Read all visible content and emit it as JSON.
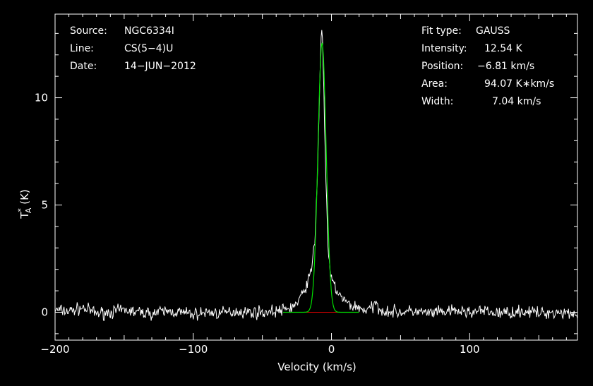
{
  "header_left": {
    "source_label": "Source:",
    "source_value": "NGC6334I",
    "line_label": "Line:",
    "line_value": "CS(5−4)U",
    "date_label": "Date:",
    "date_value": "14−JUN−2012"
  },
  "header_right": {
    "fit_type_label": "Fit type:",
    "fit_type_value": "GAUSS",
    "intensity_label": "Intensity:",
    "intensity_value": "12.54 K",
    "position_label": "Position:",
    "position_value": "−6.81 km/s",
    "area_label": "Area:",
    "area_value": "94.07 K∗km/s",
    "width_label": "Width:",
    "width_value": "7.04 km/s"
  },
  "colors": {
    "background": "#000000",
    "axes": "#ffffff",
    "spectrum": "#ffffff",
    "fit": "#00e000",
    "baseline": "#e00000"
  },
  "chart_data": {
    "type": "line",
    "xlabel": "Velocity (km/s)",
    "ylabel_main": "T",
    "ylabel_sub": "A",
    "ylabel_sup": "*",
    "ylabel_unit": " (K)",
    "xlim": [
      -200,
      178
    ],
    "ylim": [
      -1.3,
      13.9
    ],
    "xticks": [
      -200,
      -100,
      0,
      100
    ],
    "xtick_labels": [
      "−200",
      "−100",
      "0",
      "100"
    ],
    "yticks": [
      0,
      5,
      10
    ],
    "ytick_labels": [
      "0",
      "5",
      "10"
    ],
    "fit": {
      "name": "GAUSS",
      "amplitude": 12.54,
      "center": -6.81,
      "fwhm": 7.04
    },
    "spectrum": {
      "x": [
        -200,
        -190,
        -180,
        -170,
        -160,
        -150,
        -140,
        -130,
        -120,
        -110,
        -100,
        -90,
        -80,
        -70,
        -60,
        -50,
        -40,
        -35,
        -30,
        -25,
        -22,
        -20,
        -18,
        -16,
        -14,
        -12,
        -11,
        -10,
        -9,
        -8,
        -7.5,
        -7,
        -6.5,
        -6,
        -5,
        -4,
        -3,
        -2,
        -1,
        0,
        2,
        4,
        6,
        8,
        10,
        12,
        15,
        18,
        20,
        25,
        30,
        32,
        35,
        40,
        50,
        60,
        70,
        80,
        90,
        100,
        110,
        120,
        130,
        140,
        150,
        160,
        170,
        178
      ],
      "y": [
        0.1,
        0.05,
        0.2,
        -0.05,
        0.0,
        0.1,
        0.0,
        -0.05,
        0.05,
        0.0,
        -0.1,
        0.0,
        -0.05,
        0.05,
        0.0,
        0.0,
        0.05,
        0.1,
        0.2,
        0.4,
        0.7,
        1.0,
        1.3,
        1.6,
        2.2,
        3.4,
        4.9,
        6.8,
        9.3,
        11.8,
        12.8,
        13.3,
        12.6,
        11.6,
        8.9,
        6.1,
        3.9,
        2.5,
        1.9,
        1.5,
        1.3,
        1.0,
        0.8,
        0.6,
        0.5,
        0.4,
        0.3,
        0.25,
        0.2,
        0.1,
        0.2,
        0.4,
        0.15,
        0.05,
        0.0,
        0.05,
        -0.05,
        0.0,
        0.05,
        0.0,
        0.05,
        -0.05,
        0.0,
        0.05,
        -0.05,
        0.0,
        0.0,
        -0.1
      ]
    }
  }
}
